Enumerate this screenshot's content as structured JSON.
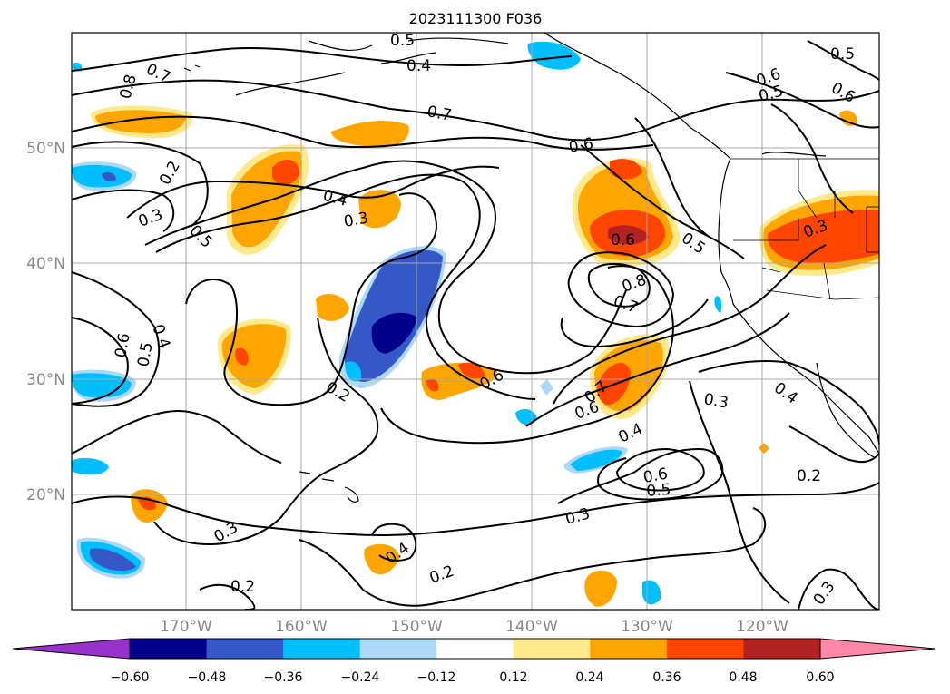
{
  "title": "2023111300 F036",
  "lat_labels": [
    "50°N",
    "40°N",
    "30°N",
    "20°N"
  ],
  "lon_labels": [
    "170°W",
    "160°W",
    "150°W",
    "140°W",
    "130°W",
    "120°W"
  ],
  "colorbar": {
    "ticks": [
      "−0.60",
      "−0.48",
      "−0.36",
      "−0.24",
      "−0.12",
      "0.12",
      "0.24",
      "0.36",
      "0.48",
      "0.60"
    ],
    "colors": [
      "#9932cc",
      "#00008b",
      "#3558c8",
      "#00bfff",
      "#add8f6",
      "#ffffff",
      "#ffe98a",
      "#ffa500",
      "#ff4500",
      "#b22222",
      "#ff88aa"
    ]
  },
  "contour_labels": [
    "0.7",
    "0.8",
    "0.2",
    "0.3",
    "0.5",
    "0.4",
    "0.3",
    "0.7",
    "0.6",
    "0.4",
    "0.5",
    "0.6",
    "0.5",
    "0.5",
    "0.6",
    "0.6",
    "0.5",
    "0.8",
    "0.7",
    "0.3",
    "0.4",
    "0.6",
    "0.5",
    "0.2",
    "0.6",
    "0.7",
    "0.6",
    "0.3",
    "0.4",
    "0.6",
    "0.5",
    "0.4",
    "0.2",
    "0.3",
    "0.3",
    "0.4",
    "0.2",
    "0.2",
    "0.3"
  ]
}
